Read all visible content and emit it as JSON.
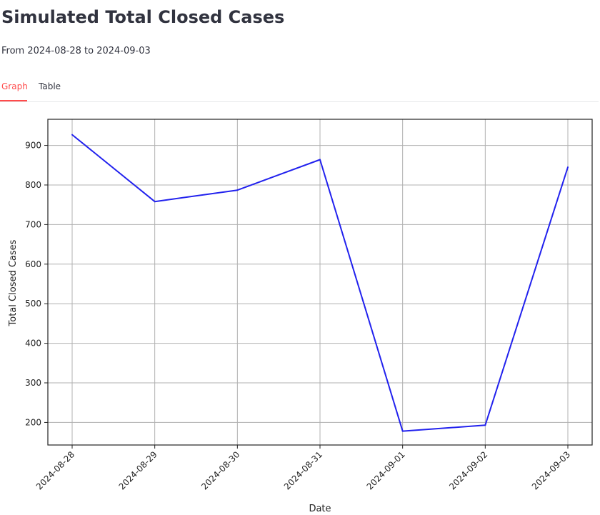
{
  "page": {
    "title": "Simulated Total Closed Cases",
    "subtitle": "From 2024-08-28 to 2024-09-03"
  },
  "tabs": [
    {
      "label": "Graph",
      "active": true
    },
    {
      "label": "Table",
      "active": false
    }
  ],
  "colors": {
    "accent": "#ff4b4b",
    "series": "#2222ee",
    "grid": "#b0b0b0"
  },
  "chart_data": {
    "type": "line",
    "title": "",
    "xlabel": "Date",
    "ylabel": "Total Closed Cases",
    "x": [
      "2024-08-28",
      "2024-08-29",
      "2024-08-30",
      "2024-08-31",
      "2024-09-01",
      "2024-09-02",
      "2024-09-03"
    ],
    "series": [
      {
        "values": [
          927,
          758,
          787,
          864,
          178,
          193,
          845
        ]
      }
    ],
    "yticks": [
      200,
      300,
      400,
      500,
      600,
      700,
      800,
      900
    ],
    "ylim": [
      143,
      966
    ],
    "grid": true,
    "legend": "none"
  }
}
